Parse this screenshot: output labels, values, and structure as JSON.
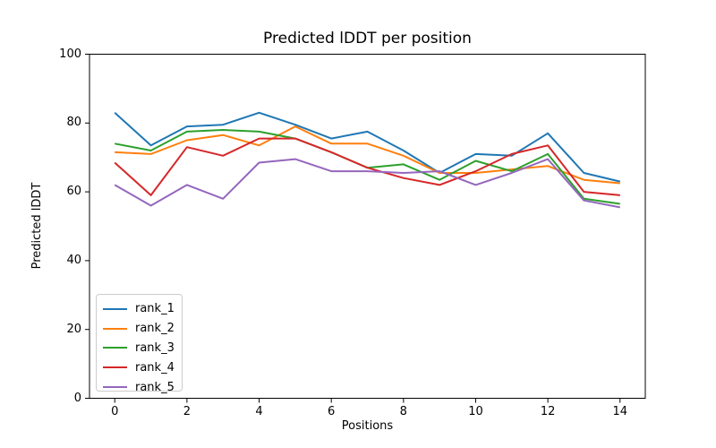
{
  "figure": {
    "background": "#ffffff",
    "axes_edge_color": "#000000"
  },
  "chart_data": {
    "type": "line",
    "title": "Predicted lDDT per position",
    "xlabel": "Positions",
    "ylabel": "Predicted lDDT",
    "xlim": [
      -0.7,
      14.7
    ],
    "ylim": [
      0,
      100
    ],
    "xticks": [
      0,
      2,
      4,
      6,
      8,
      10,
      12,
      14
    ],
    "yticks": [
      0,
      20,
      40,
      60,
      80,
      100
    ],
    "grid": false,
    "legend_position": "lower left",
    "x": [
      0,
      1,
      2,
      3,
      4,
      5,
      6,
      7,
      8,
      9,
      10,
      11,
      12,
      13,
      14
    ],
    "series": [
      {
        "name": "rank_1",
        "color": "#1f77b4",
        "values": [
          83,
          73.5,
          79,
          79.5,
          83,
          79.5,
          75.5,
          77.5,
          72,
          65.5,
          71,
          70.5,
          77,
          65.5,
          63
        ]
      },
      {
        "name": "rank_2",
        "color": "#ff7f0e",
        "values": [
          71.5,
          71,
          75,
          76.5,
          73.5,
          79,
          74,
          74,
          70.5,
          65.5,
          65.5,
          66.5,
          67.5,
          63.5,
          62.5
        ]
      },
      {
        "name": "rank_3",
        "color": "#2ca02c",
        "values": [
          74,
          72,
          77.5,
          78,
          77.5,
          75.5,
          71.5,
          67,
          68,
          63.5,
          69,
          66,
          71,
          58,
          56.5
        ]
      },
      {
        "name": "rank_4",
        "color": "#d62728",
        "values": [
          68.5,
          59,
          73,
          70.5,
          75.5,
          75.5,
          71.5,
          67,
          64,
          62,
          66,
          71,
          73.5,
          60,
          59
        ]
      },
      {
        "name": "rank_5",
        "color": "#9467bd",
        "values": [
          62,
          56,
          62,
          58,
          68.5,
          69.5,
          66,
          66,
          65.5,
          66,
          62,
          65.5,
          69.5,
          57.5,
          55.5
        ]
      }
    ]
  }
}
